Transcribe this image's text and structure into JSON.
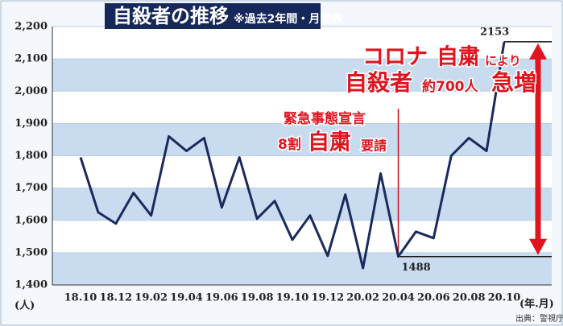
{
  "chart_data": {
    "type": "line",
    "title": "自殺者の推移",
    "subtitle": "※過去2年間・月間数",
    "y_label": "(人)",
    "x_label": "(年.月)",
    "source": "出典：警視庁",
    "categories": [
      "18.10",
      null,
      "18.12",
      null,
      "19.02",
      null,
      "19.04",
      null,
      "19.06",
      null,
      "19.08",
      null,
      "19.10",
      null,
      "19.12",
      null,
      "20.02",
      null,
      "20.04",
      null,
      "20.06",
      null,
      "20.08",
      null,
      "20.10"
    ],
    "values": [
      1795,
      1625,
      1590,
      1685,
      1615,
      1860,
      1815,
      1855,
      1640,
      1795,
      1605,
      1660,
      1540,
      1615,
      1490,
      1680,
      1452,
      1745,
      1488,
      1565,
      1545,
      1800,
      1855,
      1815,
      2153
    ],
    "value_labels": [
      null,
      null,
      null,
      null,
      null,
      null,
      null,
      null,
      null,
      null,
      null,
      null,
      null,
      null,
      null,
      null,
      null,
      null,
      "1488",
      null,
      null,
      null,
      null,
      null,
      "2153"
    ],
    "color": "#1b2a5c",
    "ylim": [
      1400,
      2200
    ],
    "yticks": [
      {
        "value": 1400,
        "label": "1,400"
      },
      {
        "value": 1500,
        "label": "1,500"
      },
      {
        "value": 1600,
        "label": "1,600"
      },
      {
        "value": 1700,
        "label": "1,700"
      },
      {
        "value": 1800,
        "label": "1,800"
      },
      {
        "value": 1900,
        "label": "1,900"
      },
      {
        "value": 2000,
        "label": "2,000"
      },
      {
        "value": 2100,
        "label": "2,100"
      },
      {
        "value": 2200,
        "label": "2,200"
      }
    ],
    "band_color": "#c9dcef",
    "annotation_left": [
      "緊急事態宣言",
      "8割",
      "自粛",
      "要請"
    ],
    "annotation_right": [
      "コロナ",
      "自粛",
      "により",
      "自殺者",
      "約700人",
      "急増"
    ]
  }
}
